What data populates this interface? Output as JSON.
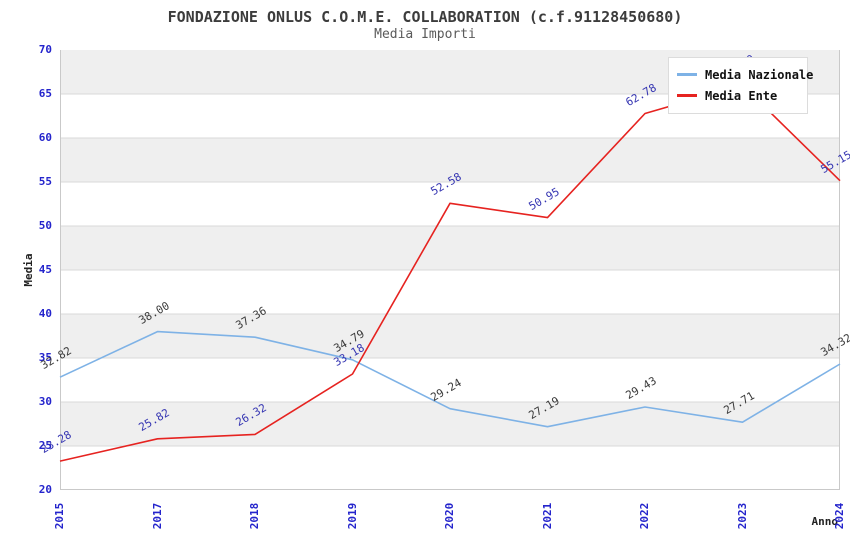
{
  "page": {
    "title": "FONDAZIONE ONLUS C.O.M.E. COLLABORATION (c.f.91128450680)",
    "subtitle": "Media Importi"
  },
  "axes": {
    "y_label": "Media",
    "x_label": "Anno",
    "y_ticks": [
      20,
      25,
      30,
      35,
      40,
      45,
      50,
      55,
      60,
      65,
      70
    ],
    "tick_color": "#2424cc"
  },
  "legend": {
    "position": "top-right",
    "items": [
      {
        "label": "Media Nazionale",
        "color": "#7eb2e6"
      },
      {
        "label": "Media Ente",
        "color": "#e62320"
      }
    ]
  },
  "chart_data": {
    "type": "line",
    "title": "FONDAZIONE ONLUS C.O.M.E. COLLABORATION (c.f.91128450680)",
    "subtitle": "Media Importi",
    "xlabel": "Anno",
    "ylabel": "Media",
    "ylim": [
      20,
      70
    ],
    "grid": "horizontal-bands-every-5",
    "band_color": "#efefef",
    "gridline_color": "#d8d8d8",
    "legend_position": "top-right",
    "categories": [
      "2015",
      "2017",
      "2018",
      "2019",
      "2020",
      "2021",
      "2022",
      "2023",
      "2024"
    ],
    "series": [
      {
        "name": "Media Nazionale",
        "color": "#7eb2e6",
        "label_color": "#3a3a3a",
        "values": [
          32.82,
          38.0,
          37.36,
          34.79,
          29.24,
          27.19,
          29.43,
          27.71,
          34.32
        ]
      },
      {
        "name": "Media Ente",
        "color": "#e62320",
        "label_color": "#3535b2",
        "values": [
          23.28,
          25.82,
          26.32,
          33.18,
          52.58,
          50.95,
          62.78,
          66.0,
          55.15
        ],
        "note": "2023 point and its label are obscured by the legend box; value estimated from line slope"
      }
    ]
  }
}
